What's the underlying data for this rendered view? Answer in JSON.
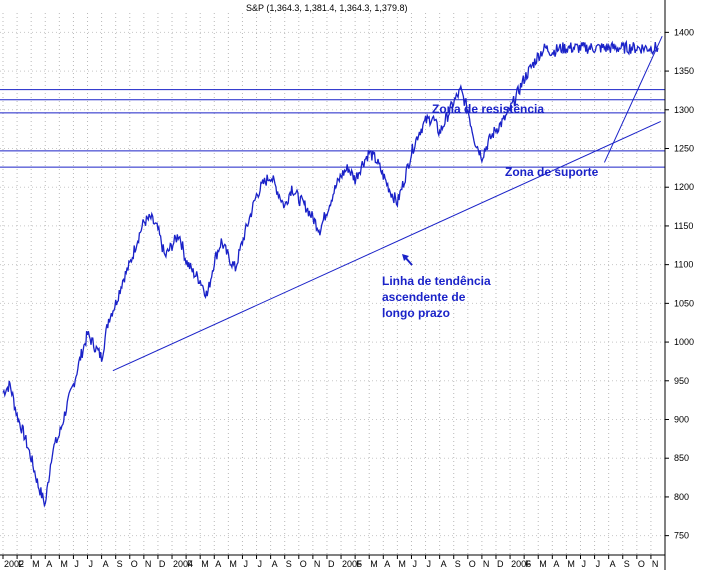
{
  "chart_data": {
    "type": "line",
    "title": "S&P (1,364.3, 1,381.4, 1,364.3, 1,379.8)",
    "xlabel": "",
    "ylabel": "",
    "ylim": [
      725,
      1425
    ],
    "y_ticks": [
      750,
      800,
      850,
      900,
      950,
      1000,
      1050,
      1100,
      1150,
      1200,
      1250,
      1300,
      1350,
      1400
    ],
    "x_tick_labels": [
      "2002",
      "F",
      "M",
      "A",
      "M",
      "J",
      "J",
      "A",
      "S",
      "O",
      "N",
      "D",
      "2004",
      "F",
      "M",
      "A",
      "M",
      "J",
      "J",
      "A",
      "S",
      "O",
      "N",
      "D",
      "2005",
      "F",
      "M",
      "A",
      "M",
      "J",
      "J",
      "A",
      "S",
      "O",
      "N",
      "D",
      "2006",
      "F",
      "M",
      "A",
      "M",
      "J",
      "J",
      "A",
      "S",
      "O",
      "N"
    ],
    "grid": true,
    "series": [
      {
        "color": "#1a22c8",
        "x": [
          0,
          0.5,
          1,
          1.5,
          2,
          2.5,
          3,
          3.5,
          4,
          4.5,
          5,
          5.5,
          6,
          6.5,
          7,
          7.5,
          8,
          8.5,
          9,
          9.5,
          10,
          10.5,
          11,
          11.5,
          12,
          12.5,
          13,
          13.5,
          14,
          14.5,
          15,
          15.5,
          16,
          16.5,
          17,
          17.5,
          18,
          18.5,
          19,
          19.5,
          20,
          20.5,
          21,
          21.5,
          22,
          22.5,
          23,
          23.5,
          24,
          24.5,
          25,
          25.5,
          26,
          26.5,
          27,
          27.5,
          28,
          28.5,
          29,
          29.5,
          30,
          30.5,
          31,
          31.5,
          32,
          32.5,
          33,
          33.5,
          34,
          34.5,
          35,
          35.5,
          36,
          36.5,
          37,
          37.5,
          38,
          38.5,
          39,
          39.5,
          40,
          40.5,
          41,
          41.5,
          42,
          42.5,
          43,
          43.5,
          44,
          44.5,
          45,
          45.5,
          46,
          46.5
        ],
        "values": [
          935,
          945,
          905,
          880,
          850,
          815,
          790,
          860,
          880,
          915,
          945,
          980,
          1010,
          995,
          980,
          1030,
          1050,
          1080,
          1100,
          1130,
          1155,
          1160,
          1145,
          1110,
          1125,
          1140,
          1105,
          1090,
          1080,
          1060,
          1105,
          1130,
          1110,
          1095,
          1130,
          1160,
          1190,
          1205,
          1215,
          1195,
          1175,
          1200,
          1185,
          1175,
          1160,
          1145,
          1170,
          1195,
          1215,
          1225,
          1210,
          1230,
          1245,
          1235,
          1215,
          1195,
          1180,
          1210,
          1245,
          1270,
          1285,
          1290,
          1270,
          1290,
          1310,
          1325,
          1300,
          1260,
          1240,
          1260,
          1275,
          1285,
          1300,
          1320,
          1340,
          1355,
          1370,
          1380,
          1375,
          1379,
          1380,
          1380,
          1380,
          1380,
          1380,
          1380,
          1380,
          1380,
          1380,
          1380,
          1380,
          1380,
          1380,
          1380
        ]
      }
    ],
    "horizontal_lines": [
      1326,
      1313,
      1296,
      1247,
      1226
    ],
    "trendlines": [
      {
        "from": [
          7.8,
          963
        ],
        "to": [
          46.7,
          1285
        ]
      },
      {
        "from": [
          42.7,
          1232
        ],
        "to": [
          46.8,
          1395
        ]
      }
    ],
    "annotations": {
      "resistance": "Zona de resistência",
      "support": "Zona de suporte",
      "trend_line1": "Linha de tendência",
      "trend_line2": "ascendente de",
      "trend_line3": "longo prazo"
    }
  }
}
